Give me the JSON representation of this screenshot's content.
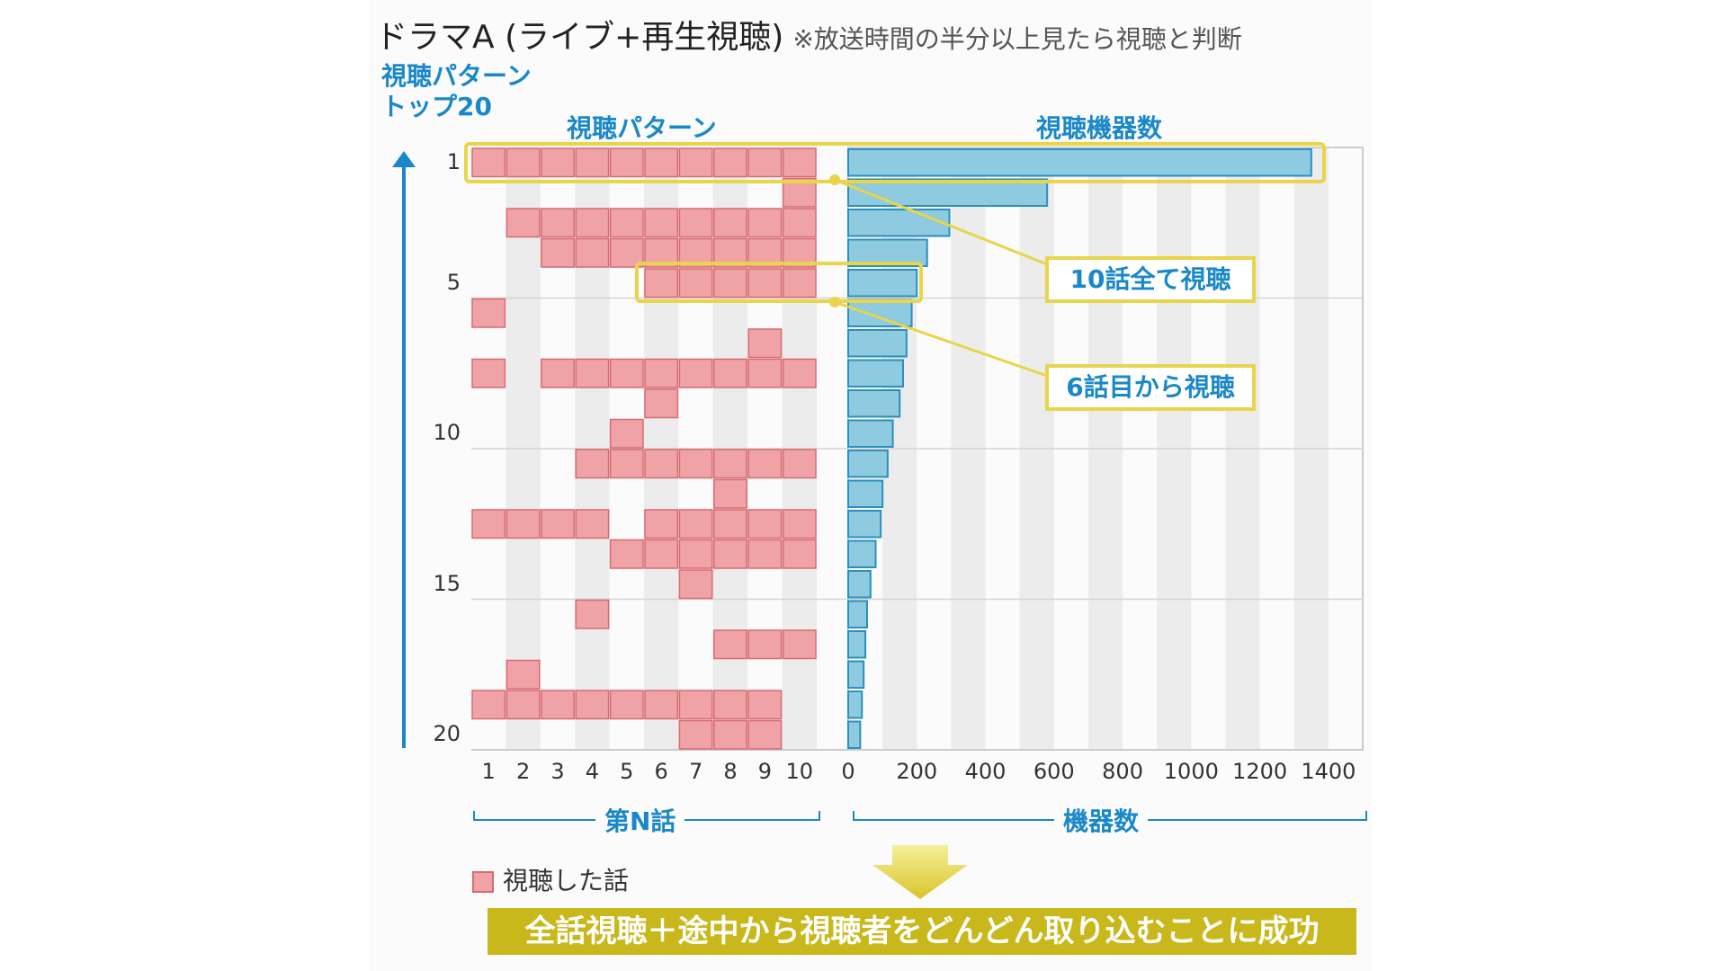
{
  "title": "ドラマA (ライブ+再生視聴)",
  "title_note": "※放送時間の半分以上見たら視聴と判断",
  "y_axis_title_line1": "視聴パターン",
  "y_axis_title_line2": "トップ20",
  "left_panel_title": "視聴パターン",
  "right_panel_title": "視聴機器数",
  "left_axis_label": "第N話",
  "right_axis_label": "機器数",
  "legend_label": "視聴した話",
  "callout_all": "10話全て視聴",
  "callout_from6": "6話目から視聴",
  "banner": "全話視聴＋途中から視聴者をどんどん取り込むことに成功",
  "rank_ticks": [
    "1",
    "5",
    "10",
    "15",
    "20"
  ],
  "episode_ticks": [
    "1",
    "2",
    "3",
    "4",
    "5",
    "6",
    "7",
    "8",
    "9",
    "10"
  ],
  "device_ticks": [
    "0",
    "200",
    "400",
    "600",
    "800",
    "1000",
    "1200",
    "1400"
  ],
  "colors": {
    "episode_cell": "#f0a3a7",
    "episode_border": "#d86a70",
    "bar": "#8ecae0",
    "bar_border": "#2a90bd",
    "accent": "#1a88c8",
    "highlight": "#e8d54a"
  },
  "chart_data": [
    {
      "type": "heatmap",
      "ylabel": "視聴パターン",
      "xlabel": "第N話",
      "x": [
        1,
        2,
        3,
        4,
        5,
        6,
        7,
        8,
        9,
        10
      ],
      "y": [
        1,
        2,
        3,
        4,
        5,
        6,
        7,
        8,
        9,
        10,
        11,
        12,
        13,
        14,
        15,
        16,
        17,
        18,
        19,
        20
      ],
      "patterns": [
        [
          1,
          2,
          3,
          4,
          5,
          6,
          7,
          8,
          9,
          10
        ],
        [
          10
        ],
        [
          2,
          3,
          4,
          5,
          6,
          7,
          8,
          9,
          10
        ],
        [
          3,
          4,
          5,
          6,
          7,
          8,
          9,
          10
        ],
        [
          6,
          7,
          8,
          9,
          10
        ],
        [
          1
        ],
        [
          9
        ],
        [
          1,
          3,
          4,
          5,
          6,
          7,
          8,
          9,
          10
        ],
        [
          6
        ],
        [
          5
        ],
        [
          4,
          5,
          6,
          7,
          8,
          9,
          10
        ],
        [
          8
        ],
        [
          1,
          2,
          3,
          4,
          6,
          7,
          8,
          9,
          10
        ],
        [
          5,
          6,
          7,
          8,
          9,
          10
        ],
        [
          7
        ],
        [
          4
        ],
        [
          8,
          9,
          10
        ],
        [
          2
        ],
        [
          1,
          2,
          3,
          4,
          5,
          6,
          7,
          8,
          9
        ],
        [
          7,
          8,
          9
        ]
      ]
    },
    {
      "type": "bar",
      "orientation": "horizontal",
      "title": "視聴機器数",
      "xlabel": "機器数",
      "categories": [
        1,
        2,
        3,
        4,
        5,
        6,
        7,
        8,
        9,
        10,
        11,
        12,
        13,
        14,
        15,
        16,
        17,
        18,
        19,
        20
      ],
      "values": [
        1350,
        580,
        295,
        230,
        200,
        185,
        170,
        160,
        150,
        130,
        115,
        100,
        95,
        80,
        65,
        55,
        50,
        45,
        40,
        35
      ],
      "xlim": [
        0,
        1500
      ],
      "grid": true
    }
  ]
}
